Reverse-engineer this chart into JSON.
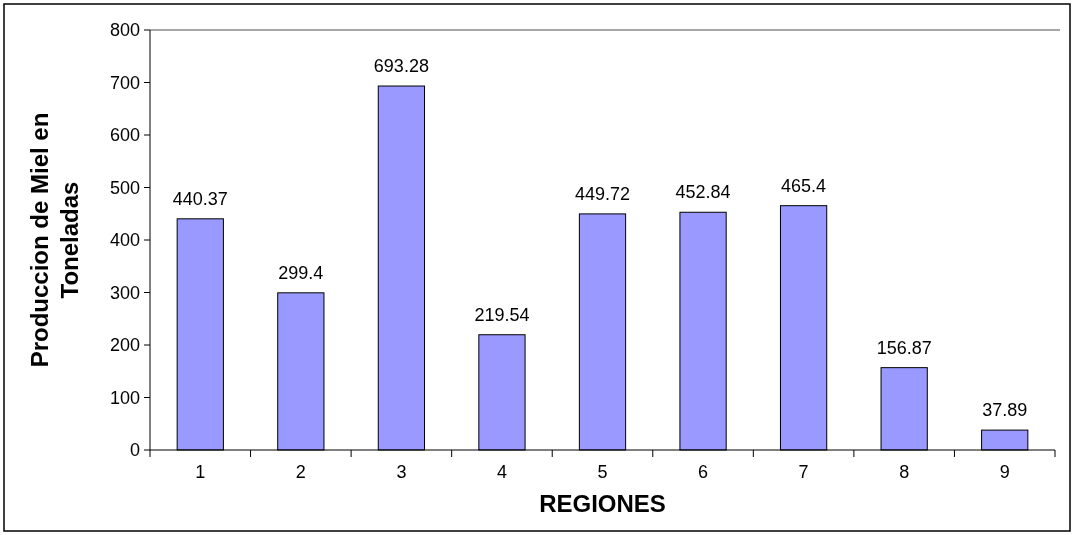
{
  "chart_data": {
    "type": "bar",
    "xlabel": "REGIONES",
    "ylabel": "Produccion de Miel en Toneladas",
    "categories": [
      "1",
      "2",
      "3",
      "4",
      "5",
      "6",
      "7",
      "8",
      "9"
    ],
    "values": [
      440.37,
      299.4,
      693.28,
      219.54,
      449.72,
      452.84,
      465.4,
      156.87,
      37.89
    ],
    "color": "#9999ff",
    "ylim": [
      0,
      800
    ],
    "yticks": [
      0,
      100,
      200,
      300,
      400,
      500,
      600,
      700,
      800
    ],
    "grid": false,
    "data_labels": true
  }
}
